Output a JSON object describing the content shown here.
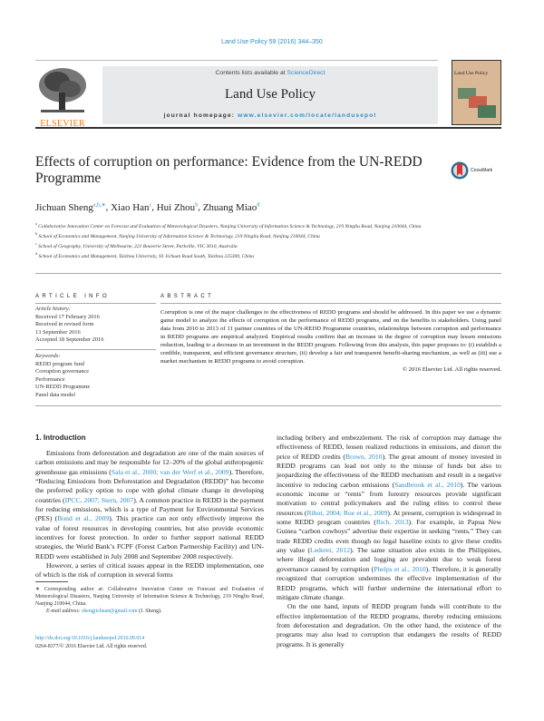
{
  "journal_ref": "Land Use Policy 59 (2016) 344–350",
  "header": {
    "contents_prefix": "Contents lists available at ",
    "contents_link": "ScienceDirect",
    "journal_title": "Land Use Policy",
    "homepage_prefix": "journal homepage: ",
    "homepage_link": "www.elsevier.com/locate/landusepol",
    "publisher_logo": "ELSEVIER",
    "cover_title": "Land Use Policy"
  },
  "colors": {
    "link": "#2a8fc8",
    "elsevier_orange": "#f07a1a",
    "header_bg": "#e8e9ea",
    "cover_bg": "#d9b896"
  },
  "title": "Effects of corruption on performance: Evidence from the UN-REDD Programme",
  "crossmark": "CrossMark",
  "authors": [
    {
      "name": "Jichuan Sheng",
      "sup": "a,b,∗"
    },
    {
      "name": "Xiao Han",
      "sup": "c"
    },
    {
      "name": "Hui Zhou",
      "sup": "b"
    },
    {
      "name": "Zhuang Miao",
      "sup": "d"
    }
  ],
  "affiliations": [
    {
      "sup": "a",
      "text": "Collaborative Innovation Center on Forecast and Evaluation of Meteorological Disasters, Nanjing University of Information Science & Technology, 219 Ningliu Road, Nanjing 210044, China"
    },
    {
      "sup": "b",
      "text": "School of Economics and Management, Nanjing University of Information Science & Technology, 219 Ningliu Road, Nanjing 210044, China"
    },
    {
      "sup": "c",
      "text": "School of Geography, University of Melbourne, 221 Bouverie Street, Parkville, VIC 3010, Australia"
    },
    {
      "sup": "d",
      "text": "School of Economics and Management, Taizhou University, 93 Jichuan Road South, Taizhou 225300, China"
    }
  ],
  "article_info": {
    "heading": "ARTICLE INFO",
    "history_label": "Article history:",
    "history": [
      "Received 17 February 2016",
      "Received in revised form",
      "13 September 2016",
      "Accepted 18 September 2016"
    ],
    "keywords_label": "Keywords:",
    "keywords": [
      "REDD program fund",
      "Corruption governance",
      "Performance",
      "UN-REDD Programme",
      "Panel data model"
    ]
  },
  "abstract": {
    "heading": "ABSTRACT",
    "text": "Corruption is one of the major challenges to the effectiveness of REDD programs and should be addressed. In this paper we use a dynamic game model to analyze the effects of corruption on the performance of REDD programs, and on the benefits to stakeholders. Using panel data from 2010 to 2013 of 11 partner countries of the UN-REDD Programme countries, relationships between corruption and performance in REDD programs are empirical analyzed. Empirical results confirm that an increase in the degree of corruption may lessen emissions reduction, leading to a decrease in an investment in the REDD program. Following from this analysis, this paper proposes to: (i) establish a credible, transparent, and efficient governance structure, (ii) develop a fair and transparent benefit-sharing mechanism, as well as (iii) use a market mechanism in REDD programs to avoid corruption.",
    "copyright": "© 2016 Elsevier Ltd. All rights reserved."
  },
  "intro_heading": "1.  Introduction",
  "left_column": [
    [
      {
        "t": "Emissions from deforestation and degradation are one of the main sources of carbon emissions and may be responsible for 12–20% of the global anthropogenic greenhouse gas emissions ("
      },
      {
        "t": "Sala et al., 2000; van der Werf et al., 2009",
        "l": 1
      },
      {
        "t": "). Therefore, “Reducing Emissions from Deforestation and Degradation (REDD)” has become the preferred policy option to cope with global climate change in developing countries ("
      },
      {
        "t": "IPCC, 2007; Stern, 2007",
        "l": 1
      },
      {
        "t": "). A common practice in REDD is the payment for reducing emissions, which is a type of Payment for Environmental Services (PES) ("
      },
      {
        "t": "Bond et al., 2009",
        "l": 1
      },
      {
        "t": "). This practice can not only effectively improve the value of forest resources in developing countries, but also provide economic incentives for forest protection. In order to further support national REDD strategies, the World Bank’s FCPF (Forest Carbon Partnership Facility) and UN-REDD were established in July 2008 and September 2008 respectively."
      }
    ],
    [
      {
        "t": "However, a series of critical issues appear in the REDD implementation, one of which is the risk of corruption in several forms"
      }
    ]
  ],
  "right_column": [
    [
      {
        "t": "including bribery and embezzlement. The risk of corruption may damage the effectiveness of REDD, lessen realized reductions in emissions, and distort the price of REDD credits ("
      },
      {
        "t": "Brown, 2010",
        "l": 1
      },
      {
        "t": "). The great amount of money invested in REDD programs can lead not only to the misuse of funds but also to jeopardizing the effectiveness of the REDD mechanism and result in a negative incentive to reducing carbon emissions ("
      },
      {
        "t": "Sandbrook et al., 2010",
        "l": 1
      },
      {
        "t": "). The various economic income or “rents” from forestry resources provide significant motivation to central policymakers and the ruling elites to control these resources ("
      },
      {
        "t": "Ribot, 2004; Roe et al., 2009",
        "l": 1
      },
      {
        "t": "). At present, corruption is widespread in some REDD program countries ("
      },
      {
        "t": "Rich, 2013",
        "l": 1
      },
      {
        "t": "). For example, in Papua New Guinea “carbon cowboys” advertise their expertise in seeking “rents.” They can trade REDD credits even though no legal baseline exists to give these credits any value ("
      },
      {
        "t": "Lederer, 2012",
        "l": 1
      },
      {
        "t": "). The same situation also exists in the Philippines, where illegal deforestation and logging are prevalent due to weak forest governance caused by corruption ("
      },
      {
        "t": "Phelps et al., 2010",
        "l": 1
      },
      {
        "t": "). Therefore, it is generally recognized that corruption undermines the effective implementation of the REDD programs, which will further undermine the international effort to mitigate climate change."
      }
    ],
    [
      {
        "t": "On the one hand, inputs of REDD program funds will contribute to the effective implementation of the REDD programs, thereby reducing emissions from deforestation and degradation. On the other hand, the existence of the programs may also lead to corruption that endangers the results of REDD programs. It is generally"
      }
    ]
  ],
  "footnote": {
    "text": "∗  Corresponding author at: Collaborative Innovation Center on Forecast and Evaluation of Meteorological Disasters, Nanjing University of Information Science & Technology, 219 Ningliu Road, Nanjing 210044, China.",
    "email_label": "E-mail address: ",
    "email": "shengjichuan@gmail.com",
    "email_suffix": " (J. Sheng)."
  },
  "doi": "http://dx.doi.org/10.1016/j.landusepol.2016.09.014",
  "issn": "0264-8377/© 2016 Elsevier Ltd. All rights reserved."
}
